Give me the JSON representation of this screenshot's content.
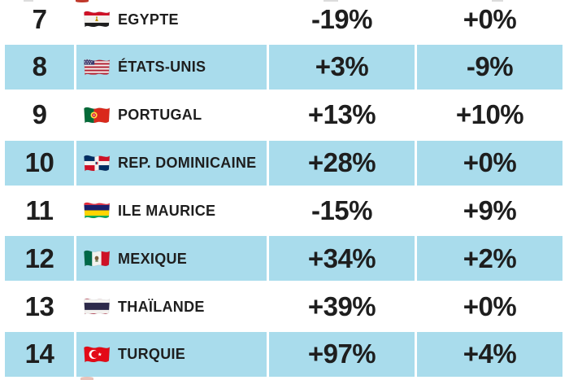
{
  "colors": {
    "row_highlight": "#a9dcec",
    "row_default": "#ffffff",
    "text": "#1e1e1e"
  },
  "chart_data": {
    "type": "table",
    "columns": [
      "rank",
      "country",
      "variation_1",
      "variation_2"
    ],
    "rows": [
      {
        "rank": "7",
        "country": "EGYPTE",
        "flag": "egypt",
        "variation_1": "-19%",
        "variation_2": "+0%",
        "highlighted": false
      },
      {
        "rank": "8",
        "country": "ÉTATS-UNIS",
        "flag": "united-states",
        "variation_1": "+3%",
        "variation_2": "-9%",
        "highlighted": true
      },
      {
        "rank": "9",
        "country": "PORTUGAL",
        "flag": "portugal",
        "variation_1": "+13%",
        "variation_2": "+10%",
        "highlighted": false
      },
      {
        "rank": "10",
        "country": "REP. DOMINICAINE",
        "flag": "dominican-republic",
        "variation_1": "+28%",
        "variation_2": "+0%",
        "highlighted": true
      },
      {
        "rank": "11",
        "country": "ILE MAURICE",
        "flag": "mauritius",
        "variation_1": "-15%",
        "variation_2": "+9%",
        "highlighted": false
      },
      {
        "rank": "12",
        "country": "MEXIQUE",
        "flag": "mexico",
        "variation_1": "+34%",
        "variation_2": "+2%",
        "highlighted": true
      },
      {
        "rank": "13",
        "country": "THAÏLANDE",
        "flag": "thailand",
        "variation_1": "+39%",
        "variation_2": "+0%",
        "highlighted": false
      },
      {
        "rank": "14",
        "country": "TURQUIE",
        "flag": "turkey",
        "variation_1": "+97%",
        "variation_2": "+4%",
        "highlighted": true
      }
    ]
  }
}
